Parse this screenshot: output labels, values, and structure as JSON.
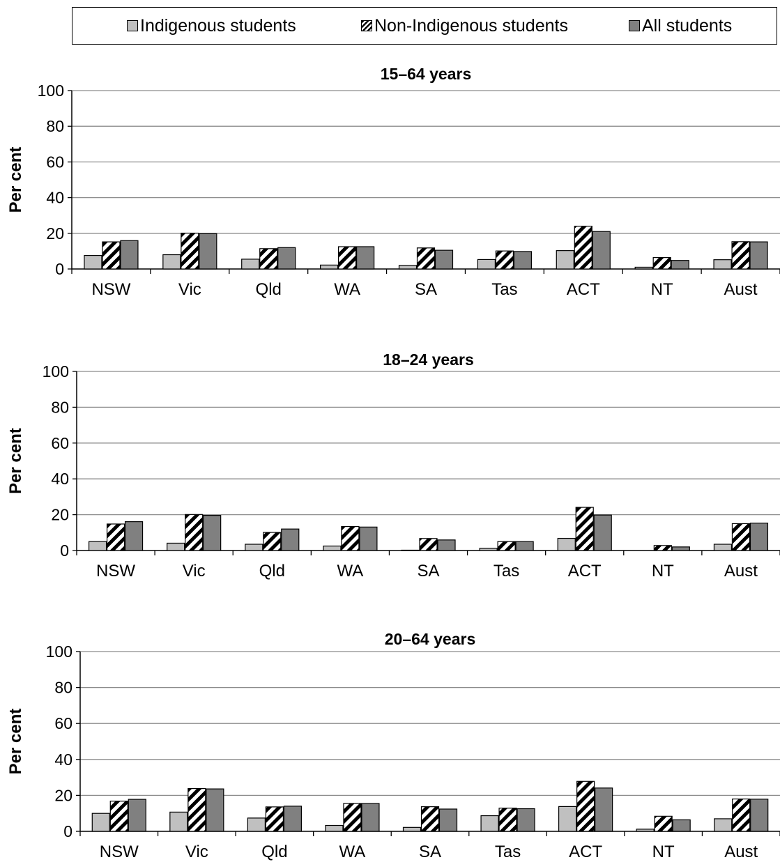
{
  "legend": [
    {
      "label": "Indigenous students",
      "color": "#c0c0c0",
      "pattern": "solid"
    },
    {
      "label": "Non-Indigenous students",
      "color": "#ffffff",
      "pattern": "diagonal-hatch"
    },
    {
      "label": "All students",
      "color": "#808080",
      "pattern": "solid"
    }
  ],
  "chart_data": [
    {
      "type": "bar",
      "title": "15–64 years",
      "ylabel": "Per cent",
      "xlabel": "",
      "ylim": [
        0,
        100
      ],
      "yticks": [
        0,
        20,
        40,
        60,
        80,
        100
      ],
      "grid": true,
      "categories": [
        "NSW",
        "Vic",
        "Qld",
        "WA",
        "SA",
        "Tas",
        "ACT",
        "NT",
        "Aust"
      ],
      "series": [
        {
          "name": "Indigenous students",
          "values": [
            7.6,
            8.0,
            5.5,
            2.2,
            2.0,
            5.3,
            10.3,
            1.0,
            5.2
          ]
        },
        {
          "name": "Non-Indigenous students",
          "values": [
            15.2,
            20.1,
            11.4,
            12.5,
            11.8,
            10.1,
            24.0,
            6.4,
            15.3
          ]
        },
        {
          "name": "All students",
          "values": [
            15.9,
            19.8,
            12.0,
            12.5,
            10.5,
            9.8,
            21.0,
            4.8,
            15.2
          ]
        }
      ]
    },
    {
      "type": "bar",
      "title": "18–24 years",
      "ylabel": "Per cent",
      "xlabel": "",
      "ylim": [
        0,
        100
      ],
      "yticks": [
        0,
        20,
        40,
        60,
        80,
        100
      ],
      "grid": true,
      "categories": [
        "NSW",
        "Vic",
        "Qld",
        "WA",
        "SA",
        "Tas",
        "ACT",
        "NT",
        "Aust"
      ],
      "series": [
        {
          "name": "Indigenous students",
          "values": [
            5.0,
            4.1,
            3.5,
            2.5,
            0.2,
            1.2,
            6.8,
            0.0,
            3.5
          ]
        },
        {
          "name": "Non-Indigenous students",
          "values": [
            14.8,
            20.1,
            10.1,
            13.4,
            6.7,
            5.0,
            24.1,
            2.8,
            15.0
          ]
        },
        {
          "name": "All students",
          "values": [
            16.1,
            19.6,
            12.0,
            13.1,
            5.9,
            5.0,
            19.8,
            2.0,
            15.3
          ]
        }
      ]
    },
    {
      "type": "bar",
      "title": "20–64 years",
      "ylabel": "Per cent",
      "xlabel": "",
      "ylim": [
        0,
        100
      ],
      "yticks": [
        0,
        20,
        40,
        60,
        80,
        100
      ],
      "grid": true,
      "categories": [
        "NSW",
        "Vic",
        "Qld",
        "WA",
        "SA",
        "Tas",
        "ACT",
        "NT",
        "Aust"
      ],
      "series": [
        {
          "name": "Indigenous students",
          "values": [
            10.0,
            10.7,
            7.4,
            3.3,
            2.2,
            8.7,
            13.8,
            1.2,
            7.0
          ]
        },
        {
          "name": "Non-Indigenous students",
          "values": [
            16.8,
            23.8,
            13.6,
            15.5,
            13.7,
            12.9,
            27.8,
            8.4,
            18.0
          ]
        },
        {
          "name": "All students",
          "values": [
            17.8,
            23.6,
            14.0,
            15.5,
            12.4,
            12.6,
            24.1,
            6.4,
            17.9
          ]
        }
      ]
    }
  ]
}
